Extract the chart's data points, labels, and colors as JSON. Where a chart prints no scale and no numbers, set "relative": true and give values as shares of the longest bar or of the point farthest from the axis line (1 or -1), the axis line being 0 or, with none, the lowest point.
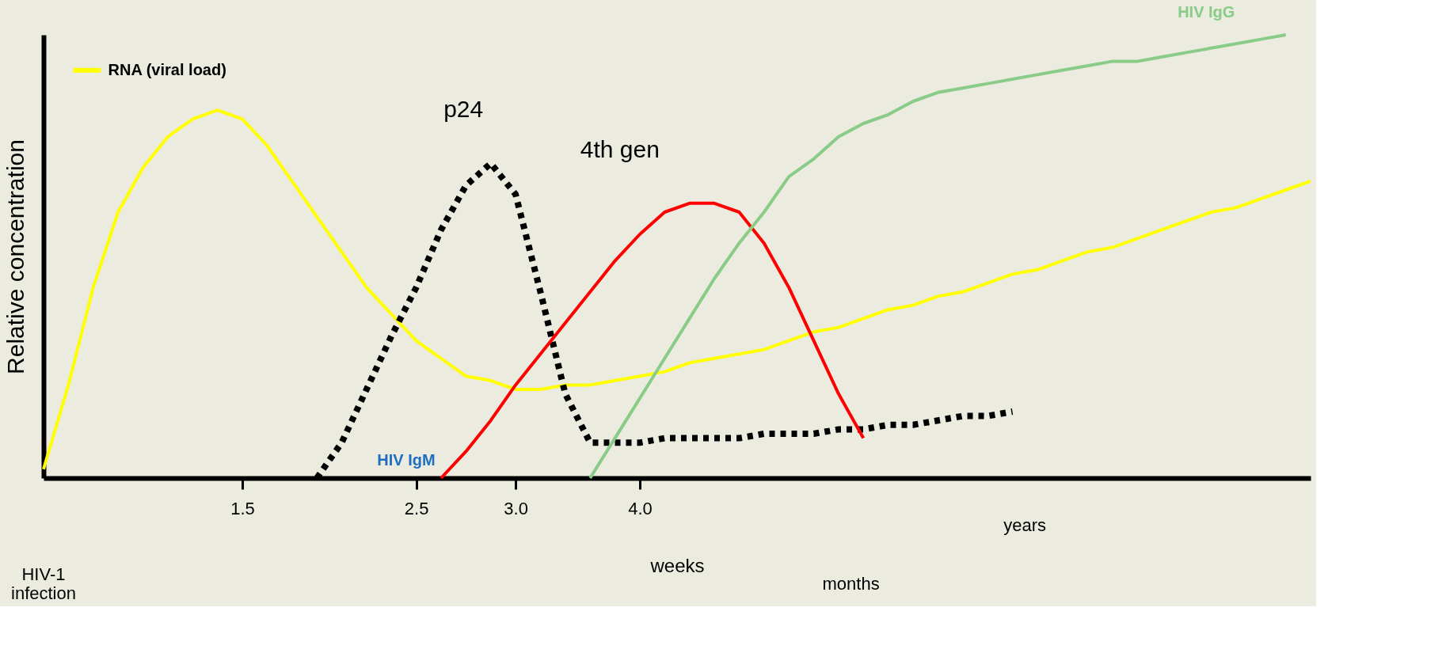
{
  "chart_data": {
    "type": "line",
    "relative": true,
    "ylabel": "Relative concentration",
    "xlabel": "weeks",
    "categories": [
      null,
      null,
      null,
      null,
      null,
      null,
      null,
      null,
      "1.5",
      null,
      null,
      null,
      null,
      null,
      null,
      "2.5",
      null,
      null,
      null,
      "3.0",
      null,
      null,
      null,
      null,
      "4.0",
      null,
      null,
      null,
      null,
      null,
      null,
      null,
      null,
      null,
      null,
      null,
      null,
      null,
      null,
      null,
      null,
      null,
      null,
      null,
      null,
      null,
      null,
      null,
      null,
      null,
      null,
      null
    ],
    "annotations": [
      "4th gen",
      "months",
      "years",
      "HIV-1 infection"
    ],
    "series": [
      {
        "name": "RNA (viral load)",
        "color": "#ffff00",
        "values": [
          0.02,
          0.21,
          0.43,
          0.6,
          0.7,
          0.77,
          0.81,
          0.83,
          0.81,
          0.75,
          0.67,
          0.59,
          0.51,
          0.43,
          0.37,
          0.31,
          0.27,
          0.23,
          0.22,
          0.2,
          0.2,
          0.21,
          0.21,
          0.22,
          0.23,
          0.24,
          0.26,
          0.27,
          0.28,
          0.29,
          0.31,
          0.33,
          0.34,
          0.36,
          0.38,
          0.39,
          0.41,
          0.42,
          0.44,
          0.46,
          0.47,
          0.49,
          0.51,
          0.52,
          0.54,
          0.56,
          0.58,
          0.6,
          0.61,
          0.63,
          0.65,
          0.67
        ]
      },
      {
        "name": "p24",
        "color": "#000000",
        "line_style": "dotted",
        "values": [
          null,
          null,
          null,
          null,
          null,
          null,
          null,
          null,
          null,
          null,
          null,
          0.0,
          0.08,
          0.2,
          0.32,
          0.43,
          0.56,
          0.66,
          0.71,
          0.64,
          0.42,
          0.19,
          0.08,
          0.08,
          0.08,
          0.09,
          0.09,
          0.09,
          0.09,
          0.1,
          0.1,
          0.1,
          0.11,
          0.11,
          0.12,
          0.12,
          0.13,
          0.14,
          0.14,
          0.15,
          null,
          null,
          null,
          null,
          null,
          null,
          null,
          null,
          null,
          null,
          null,
          null
        ]
      },
      {
        "name": "HIV IgM",
        "color": "#ff0000",
        "values": [
          null,
          null,
          null,
          null,
          null,
          null,
          null,
          null,
          null,
          null,
          null,
          null,
          null,
          null,
          null,
          null,
          0.0,
          0.06,
          0.13,
          0.21,
          0.28,
          0.35,
          0.42,
          0.49,
          0.55,
          0.6,
          0.62,
          0.62,
          0.6,
          0.53,
          0.43,
          0.31,
          0.19,
          0.09,
          null,
          null,
          null,
          null,
          null,
          null,
          null,
          null,
          null,
          null,
          null,
          null,
          null,
          null,
          null,
          null,
          null,
          null
        ]
      },
      {
        "name": "HIV IgG",
        "color": "#88cc88",
        "values": [
          null,
          null,
          null,
          null,
          null,
          null,
          null,
          null,
          null,
          null,
          null,
          null,
          null,
          null,
          null,
          null,
          null,
          null,
          null,
          null,
          null,
          null,
          0.0,
          0.09,
          0.18,
          0.27,
          0.36,
          0.45,
          0.53,
          0.6,
          0.68,
          0.72,
          0.77,
          0.8,
          0.82,
          0.85,
          0.87,
          0.88,
          0.89,
          0.9,
          0.91,
          0.92,
          0.93,
          0.94,
          0.94,
          0.95,
          0.96,
          0.97,
          0.98,
          0.99,
          1.0,
          null
        ]
      }
    ]
  }
}
